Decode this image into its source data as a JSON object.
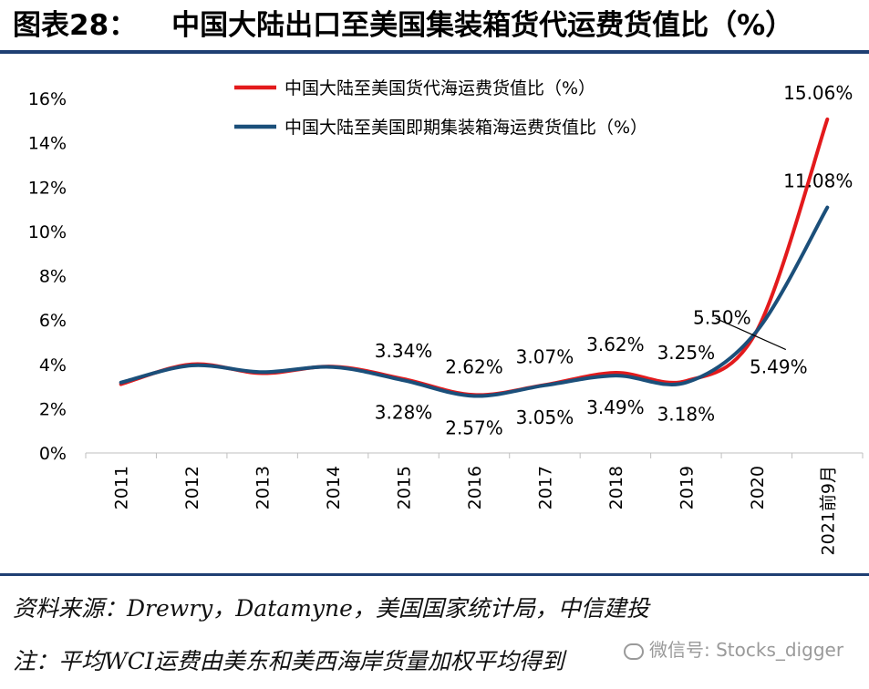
{
  "header": {
    "label": "图表28：",
    "text": "中国大陆出口至美国集装箱货代运费货值比（%）"
  },
  "footer": {
    "source": "资料来源：Drewry，Datamyne，美国国家统计局，中信建投",
    "note": "注：平均WCI运费由美东和美西海岸货量加权平均得到"
  },
  "watermark": "微信号: Stocks_digger",
  "colors": {
    "rule": "#1f3f73",
    "series1": "#e31a1c",
    "series2": "#1b4f7a"
  },
  "chart_data": {
    "type": "line",
    "title": "中国大陆出口至美国集装箱货代运费货值比（%）",
    "categories": [
      "2011",
      "2012",
      "2013",
      "2014",
      "2015",
      "2016",
      "2017",
      "2018",
      "2019",
      "2020",
      "2021前9月"
    ],
    "y_ticks": [
      "0%",
      "2%",
      "4%",
      "6%",
      "8%",
      "10%",
      "12%",
      "14%",
      "16%"
    ],
    "ylim": [
      0,
      16
    ],
    "series": [
      {
        "name": "中国大陆至美国货代海运费货值比（%）",
        "values": [
          3.1,
          4.0,
          3.6,
          3.9,
          3.34,
          2.62,
          3.07,
          3.62,
          3.25,
          5.5,
          15.06
        ]
      },
      {
        "name": "中国大陆至美国即期集装箱海运费货值比（%）",
        "values": [
          3.18,
          3.95,
          3.65,
          3.88,
          3.28,
          2.57,
          3.05,
          3.49,
          3.18,
          5.49,
          11.08
        ]
      }
    ],
    "data_labels": [
      {
        "text": "3.34%",
        "index": 4,
        "position": "above"
      },
      {
        "text": "3.28%",
        "index": 4,
        "position": "below"
      },
      {
        "text": "2.62%",
        "index": 5,
        "position": "above"
      },
      {
        "text": "2.57%",
        "index": 5,
        "position": "below"
      },
      {
        "text": "3.07%",
        "index": 6,
        "position": "above"
      },
      {
        "text": "3.05%",
        "index": 6,
        "position": "below"
      },
      {
        "text": "3.62%",
        "index": 7,
        "position": "above"
      },
      {
        "text": "3.49%",
        "index": 7,
        "position": "below"
      },
      {
        "text": "3.25%",
        "index": 8,
        "position": "above"
      },
      {
        "text": "3.18%",
        "index": 8,
        "position": "below"
      },
      {
        "text": "5.50%",
        "index": 9,
        "position": "above-left"
      },
      {
        "text": "5.49%",
        "index": 9,
        "position": "below-right"
      },
      {
        "text": "15.06%",
        "index": 10,
        "position": "above"
      },
      {
        "text": "11.08%",
        "index": 10,
        "position": "above"
      }
    ],
    "legend": "top-right",
    "grid": false
  }
}
